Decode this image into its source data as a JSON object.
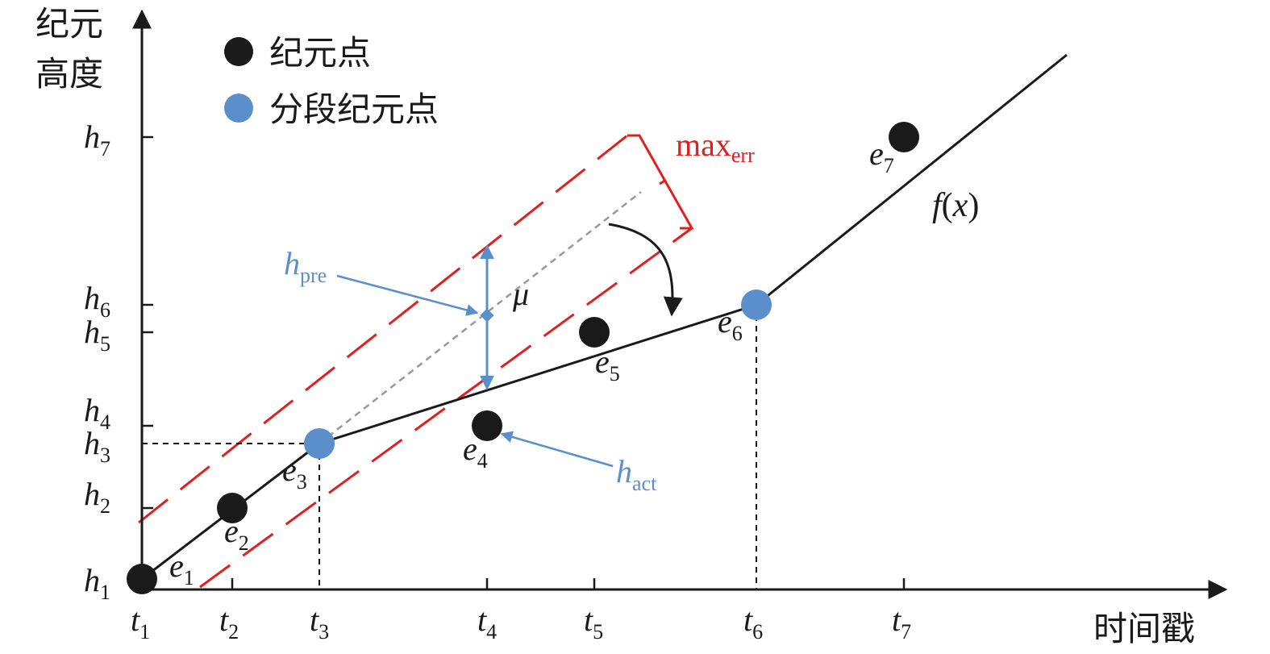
{
  "axes": {
    "y_title_line1": "纪元",
    "y_title_line2": "高度",
    "x_title": "时间戳"
  },
  "legend": {
    "black_label": "纪元点",
    "blue_label": "分段纪元点"
  },
  "y_ticks": [
    {
      "var": "h",
      "sub": "7"
    },
    {
      "var": "h",
      "sub": "6"
    },
    {
      "var": "h",
      "sub": "5"
    },
    {
      "var": "h",
      "sub": "4"
    },
    {
      "var": "h",
      "sub": "3"
    },
    {
      "var": "h",
      "sub": "2"
    },
    {
      "var": "h",
      "sub": "1"
    }
  ],
  "x_ticks": [
    {
      "var": "t",
      "sub": "1"
    },
    {
      "var": "t",
      "sub": "2"
    },
    {
      "var": "t",
      "sub": "3"
    },
    {
      "var": "t",
      "sub": "4"
    },
    {
      "var": "t",
      "sub": "5"
    },
    {
      "var": "t",
      "sub": "6"
    },
    {
      "var": "t",
      "sub": "7"
    }
  ],
  "points": [
    {
      "var": "e",
      "sub": "1"
    },
    {
      "var": "e",
      "sub": "2"
    },
    {
      "var": "e",
      "sub": "3"
    },
    {
      "var": "e",
      "sub": "4"
    },
    {
      "var": "e",
      "sub": "5"
    },
    {
      "var": "e",
      "sub": "6"
    },
    {
      "var": "e",
      "sub": "7"
    }
  ],
  "annotations": {
    "max_err_main": "max",
    "max_err_sub": "err",
    "h_pre_main": "h",
    "h_pre_sub": "pre",
    "h_act_main": "h",
    "h_act_sub": "act",
    "mu": "μ",
    "fx_f": "f",
    "fx_open": "(",
    "fx_x": "x",
    "fx_close": ")"
  },
  "colors": {
    "black": "#1a1a1a",
    "blue": "#5b8fcc",
    "red": "#e02020",
    "gray": "#999999"
  }
}
